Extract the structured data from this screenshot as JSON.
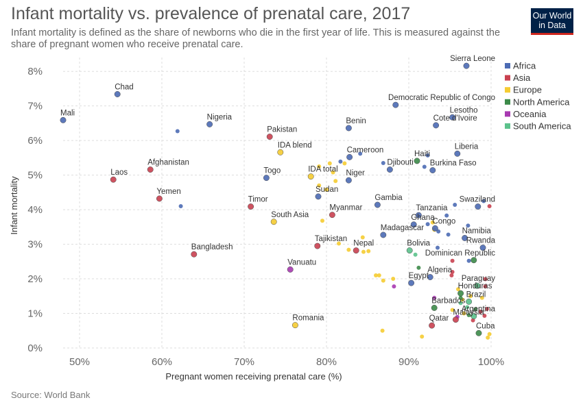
{
  "header": {
    "title": "Infant mortality vs. prevalence of prenatal care, 2017",
    "subtitle": "Infant mortality is defined as the share of newborns who die in the first year of life. This is measured against the share of pregnant women who receive prenatal care.",
    "logo_line1": "Our World",
    "logo_line2": "in Data"
  },
  "footer": {
    "source": "Source: World Bank"
  },
  "colors": {
    "Africa": "#4c6bb4",
    "Asia": "#c94150",
    "Europe": "#f5cc32",
    "North America": "#3d8b4a",
    "Oceania": "#a83ab1",
    "South America": "#5cc28c"
  },
  "chart_data": {
    "type": "scatter",
    "title": "Infant mortality vs. prevalence of prenatal care, 2017",
    "xlabel": "Pregnant women receiving prenatal care (%)",
    "ylabel": "Infant mortality",
    "xlim": [
      48,
      100
    ],
    "ylim": [
      0,
      8.4
    ],
    "x_ticks": [
      50,
      60,
      70,
      80,
      90,
      100
    ],
    "x_tick_labels": [
      "50%",
      "60%",
      "70%",
      "80%",
      "90%",
      "100%"
    ],
    "y_ticks": [
      0,
      1,
      2,
      3,
      4,
      5,
      6,
      7,
      8
    ],
    "y_tick_labels": [
      "0%",
      "1%",
      "2%",
      "3%",
      "4%",
      "5%",
      "6%",
      "7%",
      "8%"
    ],
    "grid": true,
    "legend_position": "right",
    "legend": [
      "Africa",
      "Asia",
      "Europe",
      "North America",
      "Oceania",
      "South America"
    ],
    "points": [
      {
        "label": "Chad",
        "x": 54.6,
        "y": 7.34,
        "region": "Africa",
        "size": "large"
      },
      {
        "label": "Mali",
        "x": 48.0,
        "y": 6.59,
        "region": "Africa",
        "size": "large"
      },
      {
        "label": "Nigeria",
        "x": 65.8,
        "y": 6.47,
        "region": "Africa",
        "size": "large"
      },
      {
        "label": "Pakistan",
        "x": 73.1,
        "y": 6.11,
        "region": "Asia",
        "size": "large"
      },
      {
        "label": "Afghanistan",
        "x": 58.6,
        "y": 5.16,
        "region": "Asia",
        "size": "large"
      },
      {
        "label": "Laos",
        "x": 54.1,
        "y": 4.87,
        "region": "Asia",
        "size": "large"
      },
      {
        "label": "Yemen",
        "x": 59.7,
        "y": 4.32,
        "region": "Asia",
        "size": "large"
      },
      {
        "label": "Togo",
        "x": 72.7,
        "y": 4.92,
        "region": "Africa",
        "size": "large"
      },
      {
        "label": "IDA blend",
        "x": 74.4,
        "y": 5.66,
        "region": "Europe",
        "size": "large"
      },
      {
        "label": "IDA total",
        "x": 78.1,
        "y": 4.96,
        "region": "Europe",
        "size": "large"
      },
      {
        "label": "Sudan",
        "x": 79.0,
        "y": 4.38,
        "region": "Africa",
        "size": "large"
      },
      {
        "label": "Timor",
        "x": 70.8,
        "y": 4.09,
        "region": "Asia",
        "size": "large"
      },
      {
        "label": "South Asia",
        "x": 73.6,
        "y": 3.65,
        "region": "Europe",
        "size": "large"
      },
      {
        "label": "Myanmar",
        "x": 80.7,
        "y": 3.85,
        "region": "Asia",
        "size": "large"
      },
      {
        "label": "Bangladesh",
        "x": 63.9,
        "y": 2.71,
        "region": "Asia",
        "size": "large"
      },
      {
        "label": "Tajikistan",
        "x": 78.9,
        "y": 2.95,
        "region": "Asia",
        "size": "large"
      },
      {
        "label": "Vanuatu",
        "x": 75.6,
        "y": 2.27,
        "region": "Oceania",
        "size": "large"
      },
      {
        "label": "Romania",
        "x": 76.2,
        "y": 0.66,
        "region": "Europe",
        "size": "large"
      },
      {
        "label": "Democratic Republic of Congo",
        "x": 88.4,
        "y": 7.03,
        "region": "Africa",
        "size": "large"
      },
      {
        "label": "Sierra Leone",
        "x": 97.0,
        "y": 8.16,
        "region": "Africa",
        "size": "large"
      },
      {
        "label": "Benin",
        "x": 82.7,
        "y": 6.36,
        "region": "Africa",
        "size": "large"
      },
      {
        "label": "Lesotho",
        "x": 95.3,
        "y": 6.67,
        "region": "Africa",
        "size": "large"
      },
      {
        "label": "Cote d'Ivoire",
        "x": 93.3,
        "y": 6.44,
        "region": "Africa",
        "size": "large"
      },
      {
        "label": "Cameroon",
        "x": 82.8,
        "y": 5.52,
        "region": "Africa",
        "size": "large"
      },
      {
        "label": "Djibouti",
        "x": 87.7,
        "y": 5.16,
        "region": "Africa",
        "size": "large"
      },
      {
        "label": "Niger",
        "x": 82.7,
        "y": 4.85,
        "region": "Africa",
        "size": "large"
      },
      {
        "label": "Liberia",
        "x": 95.9,
        "y": 5.62,
        "region": "Africa",
        "size": "large"
      },
      {
        "label": "Haiti",
        "x": 91.0,
        "y": 5.41,
        "region": "North America",
        "size": "large"
      },
      {
        "label": "Burkina Faso",
        "x": 92.9,
        "y": 5.14,
        "region": "Africa",
        "size": "large"
      },
      {
        "label": "Gambia",
        "x": 86.2,
        "y": 4.14,
        "region": "Africa",
        "size": "large"
      },
      {
        "label": "Swaziland",
        "x": 98.4,
        "y": 4.09,
        "region": "Africa",
        "size": "large"
      },
      {
        "label": "Tanzania",
        "x": 91.2,
        "y": 3.84,
        "region": "Africa",
        "size": "large"
      },
      {
        "label": "Ghana",
        "x": 90.6,
        "y": 3.57,
        "region": "Africa",
        "size": "large"
      },
      {
        "label": "Congo",
        "x": 93.2,
        "y": 3.46,
        "region": "Africa",
        "size": "large"
      },
      {
        "label": "Madagascar",
        "x": 86.9,
        "y": 3.27,
        "region": "Africa",
        "size": "large"
      },
      {
        "label": "Namibia",
        "x": 96.8,
        "y": 3.18,
        "region": "Africa",
        "size": "large"
      },
      {
        "label": "Rwanda",
        "x": 99.0,
        "y": 2.9,
        "region": "Africa",
        "size": "large"
      },
      {
        "label": "Nepal",
        "x": 83.6,
        "y": 2.82,
        "region": "Asia",
        "size": "large"
      },
      {
        "label": "Bolivia",
        "x": 90.1,
        "y": 2.82,
        "region": "South America",
        "size": "large"
      },
      {
        "label": "Dominican Republic",
        "x": 97.9,
        "y": 2.54,
        "region": "North America",
        "size": "large"
      },
      {
        "label": "Algeria",
        "x": 92.6,
        "y": 2.05,
        "region": "Africa",
        "size": "large"
      },
      {
        "label": "Egypt",
        "x": 90.3,
        "y": 1.88,
        "region": "Africa",
        "size": "large"
      },
      {
        "label": "Paraguay",
        "x": 98.3,
        "y": 1.8,
        "region": "South America",
        "size": "large"
      },
      {
        "label": "Honduras",
        "x": 96.3,
        "y": 1.58,
        "region": "North America",
        "size": "large"
      },
      {
        "label": "Brazil",
        "x": 97.3,
        "y": 1.34,
        "region": "South America",
        "size": "large"
      },
      {
        "label": "Barbados",
        "x": 93.1,
        "y": 1.16,
        "region": "North America",
        "size": "large"
      },
      {
        "label": "Argentina",
        "x": 97.9,
        "y": 0.92,
        "region": "South America",
        "size": "large"
      },
      {
        "label": "Malaysia",
        "x": 95.7,
        "y": 0.82,
        "region": "Asia",
        "size": "large"
      },
      {
        "label": "Qatar",
        "x": 92.8,
        "y": 0.65,
        "region": "Asia",
        "size": "large"
      },
      {
        "label": "Cuba",
        "x": 98.5,
        "y": 0.43,
        "region": "North America",
        "size": "large"
      },
      {
        "label": "",
        "x": 61.9,
        "y": 6.27,
        "region": "Africa",
        "size": "small"
      },
      {
        "label": "",
        "x": 62.3,
        "y": 4.1,
        "region": "Africa",
        "size": "small"
      },
      {
        "label": "",
        "x": 81.7,
        "y": 5.39,
        "region": "Africa",
        "size": "small"
      },
      {
        "label": "",
        "x": 84.1,
        "y": 5.62,
        "region": "Africa",
        "size": "small"
      },
      {
        "label": "",
        "x": 86.9,
        "y": 5.35,
        "region": "Africa",
        "size": "small"
      },
      {
        "label": "",
        "x": 91.9,
        "y": 5.24,
        "region": "Africa",
        "size": "small"
      },
      {
        "label": "",
        "x": 92.3,
        "y": 5.57,
        "region": "Africa",
        "size": "small"
      },
      {
        "label": "",
        "x": 95.6,
        "y": 4.14,
        "region": "Africa",
        "size": "small"
      },
      {
        "label": "",
        "x": 99.1,
        "y": 4.25,
        "region": "Africa",
        "size": "small"
      },
      {
        "label": "",
        "x": 94.6,
        "y": 3.83,
        "region": "Africa",
        "size": "small"
      },
      {
        "label": "",
        "x": 97.2,
        "y": 3.54,
        "region": "Africa",
        "size": "small"
      },
      {
        "label": "",
        "x": 93.6,
        "y": 3.37,
        "region": "Africa",
        "size": "small"
      },
      {
        "label": "",
        "x": 94.8,
        "y": 3.28,
        "region": "Africa",
        "size": "small"
      },
      {
        "label": "",
        "x": 93.5,
        "y": 2.9,
        "region": "Africa",
        "size": "small"
      },
      {
        "label": "",
        "x": 97.3,
        "y": 2.52,
        "region": "Africa",
        "size": "small"
      },
      {
        "label": "",
        "x": 92.3,
        "y": 3.58,
        "region": "Africa",
        "size": "small"
      },
      {
        "label": "",
        "x": 99.8,
        "y": 4.1,
        "region": "Asia",
        "size": "small"
      },
      {
        "label": "",
        "x": 95.3,
        "y": 2.52,
        "region": "Asia",
        "size": "small"
      },
      {
        "label": "",
        "x": 95.3,
        "y": 2.2,
        "region": "Asia",
        "size": "small"
      },
      {
        "label": "",
        "x": 95.2,
        "y": 2.1,
        "region": "Asia",
        "size": "small"
      },
      {
        "label": "",
        "x": 99.3,
        "y": 1.99,
        "region": "Asia",
        "size": "small"
      },
      {
        "label": "",
        "x": 98.2,
        "y": 1.8,
        "region": "Asia",
        "size": "small"
      },
      {
        "label": "",
        "x": 99.3,
        "y": 1.78,
        "region": "Asia",
        "size": "small"
      },
      {
        "label": "",
        "x": 99.5,
        "y": 1.13,
        "region": "Asia",
        "size": "small"
      },
      {
        "label": "",
        "x": 98.7,
        "y": 1.05,
        "region": "Asia",
        "size": "small"
      },
      {
        "label": "",
        "x": 99.2,
        "y": 0.93,
        "region": "Asia",
        "size": "small"
      },
      {
        "label": "",
        "x": 97.8,
        "y": 0.8,
        "region": "Asia",
        "size": "small"
      },
      {
        "label": "",
        "x": 79.1,
        "y": 5.25,
        "region": "Europe",
        "size": "small"
      },
      {
        "label": "",
        "x": 80.4,
        "y": 5.34,
        "region": "Europe",
        "size": "small"
      },
      {
        "label": "",
        "x": 80.8,
        "y": 5.08,
        "region": "Europe",
        "size": "small"
      },
      {
        "label": "",
        "x": 82.2,
        "y": 5.34,
        "region": "Europe",
        "size": "small"
      },
      {
        "label": "",
        "x": 79.1,
        "y": 4.7,
        "region": "Europe",
        "size": "small"
      },
      {
        "label": "",
        "x": 80.0,
        "y": 4.58,
        "region": "Europe",
        "size": "small"
      },
      {
        "label": "",
        "x": 81.1,
        "y": 4.83,
        "region": "Europe",
        "size": "small"
      },
      {
        "label": "",
        "x": 79.5,
        "y": 3.68,
        "region": "Europe",
        "size": "small"
      },
      {
        "label": "",
        "x": 84.4,
        "y": 3.2,
        "region": "Europe",
        "size": "small"
      },
      {
        "label": "",
        "x": 82.7,
        "y": 2.84,
        "region": "Europe",
        "size": "small"
      },
      {
        "label": "",
        "x": 84.5,
        "y": 2.78,
        "region": "Europe",
        "size": "small"
      },
      {
        "label": "",
        "x": 85.1,
        "y": 2.8,
        "region": "Europe",
        "size": "small"
      },
      {
        "label": "",
        "x": 81.5,
        "y": 3.02,
        "region": "Europe",
        "size": "small"
      },
      {
        "label": "",
        "x": 86.0,
        "y": 2.1,
        "region": "Europe",
        "size": "small"
      },
      {
        "label": "",
        "x": 86.4,
        "y": 2.1,
        "region": "Europe",
        "size": "small"
      },
      {
        "label": "",
        "x": 88.1,
        "y": 2.0,
        "region": "Europe",
        "size": "small"
      },
      {
        "label": "",
        "x": 86.9,
        "y": 1.95,
        "region": "Europe",
        "size": "small"
      },
      {
        "label": "",
        "x": 86.8,
        "y": 0.5,
        "region": "Europe",
        "size": "small"
      },
      {
        "label": "",
        "x": 91.6,
        "y": 0.33,
        "region": "Europe",
        "size": "small"
      },
      {
        "label": "",
        "x": 92.9,
        "y": 3.63,
        "region": "Europe",
        "size": "small"
      },
      {
        "label": "",
        "x": 93.1,
        "y": 3.42,
        "region": "Europe",
        "size": "small"
      },
      {
        "label": "",
        "x": 96.0,
        "y": 1.7,
        "region": "Europe",
        "size": "small"
      },
      {
        "label": "",
        "x": 97.5,
        "y": 1.5,
        "region": "Europe",
        "size": "small"
      },
      {
        "label": "",
        "x": 96.5,
        "y": 1.4,
        "region": "Europe",
        "size": "small"
      },
      {
        "label": "",
        "x": 95.3,
        "y": 1.1,
        "region": "Europe",
        "size": "small"
      },
      {
        "label": "",
        "x": 96.7,
        "y": 1.0,
        "region": "Europe",
        "size": "small"
      },
      {
        "label": "",
        "x": 99.6,
        "y": 0.3,
        "region": "Europe",
        "size": "small"
      },
      {
        "label": "",
        "x": 99.8,
        "y": 0.4,
        "region": "Europe",
        "size": "small"
      },
      {
        "label": "",
        "x": 98.9,
        "y": 1.45,
        "region": "Europe",
        "size": "small"
      },
      {
        "label": "",
        "x": 91.2,
        "y": 2.32,
        "region": "North America",
        "size": "small"
      },
      {
        "label": "",
        "x": 96.3,
        "y": 1.45,
        "region": "North America",
        "size": "small"
      },
      {
        "label": "",
        "x": 98.1,
        "y": 1.12,
        "region": "North America",
        "size": "small"
      },
      {
        "label": "",
        "x": 97.3,
        "y": 0.95,
        "region": "North America",
        "size": "small"
      },
      {
        "label": "",
        "x": 88.2,
        "y": 1.78,
        "region": "Oceania",
        "size": "small"
      },
      {
        "label": "",
        "x": 93.1,
        "y": 1.45,
        "region": "Oceania",
        "size": "small"
      },
      {
        "label": "",
        "x": 95.9,
        "y": 0.9,
        "region": "Oceania",
        "size": "small"
      },
      {
        "label": "",
        "x": 90.8,
        "y": 2.7,
        "region": "South America",
        "size": "small"
      },
      {
        "label": "",
        "x": 96.3,
        "y": 1.3,
        "region": "South America",
        "size": "small"
      },
      {
        "label": "",
        "x": 97.1,
        "y": 1.18,
        "region": "South America",
        "size": "small"
      }
    ]
  }
}
